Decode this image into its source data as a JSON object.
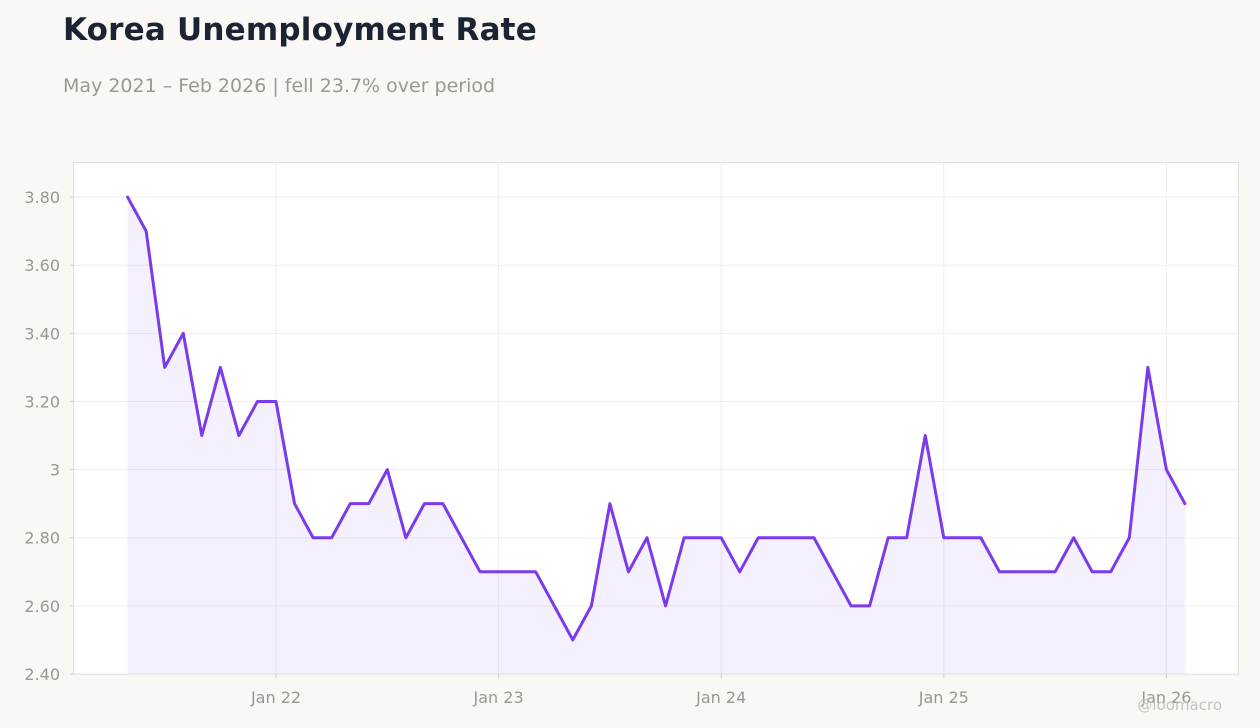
{
  "chart_data": {
    "type": "area",
    "title": "Korea Unemployment Rate",
    "subtitle": "May 2021 – Feb 2026 | fell 23.7% over period",
    "xlabel": "",
    "ylabel": "",
    "ylim": [
      2.4,
      3.9
    ],
    "y_ticks": [
      "2.40",
      "2.60",
      "2.80",
      "3",
      "3.20",
      "3.40",
      "3.60",
      "3.80"
    ],
    "x_ticks": [
      {
        "label": "Jan 22",
        "date": "2022-01"
      },
      {
        "label": "Jan 23",
        "date": "2023-01"
      },
      {
        "label": "Jan 24",
        "date": "2024-01"
      },
      {
        "label": "Jan 25",
        "date": "2025-01"
      },
      {
        "label": "Jan 26",
        "date": "2026-01"
      }
    ],
    "grid": true,
    "legend": "none",
    "color": "#7c3aed",
    "watermark": "@loomacro",
    "series": [
      {
        "x": [
          "2021-05",
          "2021-06",
          "2021-07",
          "2021-08",
          "2021-09",
          "2021-10",
          "2021-11",
          "2021-12",
          "2022-01",
          "2022-02",
          "2022-03",
          "2022-04",
          "2022-05",
          "2022-06",
          "2022-07",
          "2022-08",
          "2022-09",
          "2022-10",
          "2022-11",
          "2022-12",
          "2023-01",
          "2023-02",
          "2023-03",
          "2023-04",
          "2023-05",
          "2023-06",
          "2023-07",
          "2023-08",
          "2023-09",
          "2023-10",
          "2023-11",
          "2023-12",
          "2024-01",
          "2024-02",
          "2024-03",
          "2024-04",
          "2024-05",
          "2024-06",
          "2024-07",
          "2024-08",
          "2024-09",
          "2024-10",
          "2024-11",
          "2024-12",
          "2025-01",
          "2025-02",
          "2025-03",
          "2025-04",
          "2025-05",
          "2025-06",
          "2025-07",
          "2025-08",
          "2025-09",
          "2025-10",
          "2025-11",
          "2025-12",
          "2026-01",
          "2026-02"
        ],
        "values": [
          3.8,
          3.7,
          3.3,
          3.4,
          3.1,
          3.3,
          3.1,
          3.2,
          3.2,
          2.9,
          2.8,
          2.8,
          2.9,
          2.9,
          3.0,
          2.8,
          2.9,
          2.9,
          2.8,
          2.7,
          2.7,
          2.7,
          2.7,
          2.6,
          2.5,
          2.6,
          2.9,
          2.7,
          2.8,
          2.6,
          2.8,
          2.8,
          2.8,
          2.7,
          2.8,
          2.8,
          2.8,
          2.8,
          2.7,
          2.6,
          2.6,
          2.8,
          2.8,
          3.1,
          2.8,
          2.8,
          2.8,
          2.7,
          2.7,
          2.7,
          2.7,
          2.8,
          2.7,
          2.7,
          2.8,
          3.3,
          3.0,
          2.9
        ]
      }
    ]
  }
}
